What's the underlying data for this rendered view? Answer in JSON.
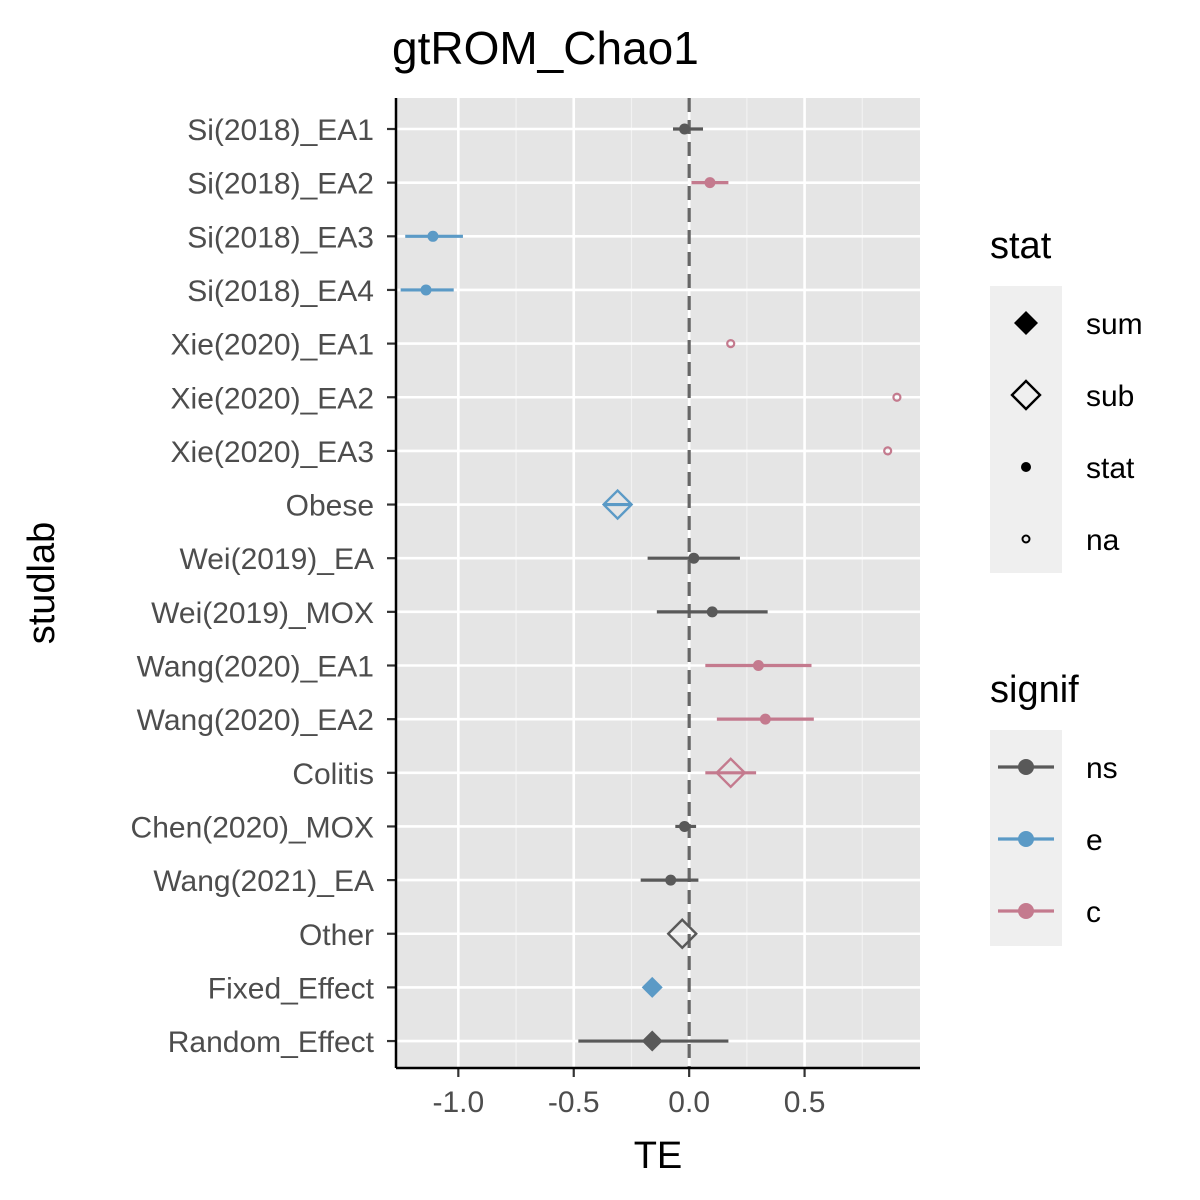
{
  "chart_data": {
    "type": "forest",
    "title": "gtROM_Chao1",
    "xlabel": "TE",
    "ylabel": "studlab",
    "xlim": [
      -1.27,
      1.0
    ],
    "x_ticks": [
      -1.0,
      -0.5,
      0.0,
      0.5
    ],
    "x_tick_labels": [
      "-1.0",
      "-0.5",
      "0.0",
      "0.5"
    ],
    "reference_line": 0.0,
    "grid": true,
    "rows": [
      {
        "label": "Si(2018)_EA1",
        "te": -0.02,
        "lower": -0.07,
        "upper": 0.06,
        "stat": "stat",
        "signif": "ns"
      },
      {
        "label": "Si(2018)_EA2",
        "te": 0.09,
        "lower": 0.01,
        "upper": 0.17,
        "stat": "stat",
        "signif": "c"
      },
      {
        "label": "Si(2018)_EA3",
        "te": -1.11,
        "lower": -1.23,
        "upper": -0.98,
        "stat": "stat",
        "signif": "e"
      },
      {
        "label": "Si(2018)_EA4",
        "te": -1.14,
        "lower": -1.25,
        "upper": -1.02,
        "stat": "stat",
        "signif": "e"
      },
      {
        "label": "Xie(2020)_EA1",
        "te": 0.18,
        "lower": null,
        "upper": null,
        "stat": "na",
        "signif": "c"
      },
      {
        "label": "Xie(2020)_EA2",
        "te": 0.9,
        "lower": null,
        "upper": null,
        "stat": "na",
        "signif": "c"
      },
      {
        "label": "Xie(2020)_EA3",
        "te": 0.86,
        "lower": null,
        "upper": null,
        "stat": "na",
        "signif": "c"
      },
      {
        "label": "Obese",
        "te": -0.31,
        "lower": -0.37,
        "upper": -0.25,
        "stat": "sub",
        "signif": "e"
      },
      {
        "label": "Wei(2019)_EA",
        "te": 0.02,
        "lower": -0.18,
        "upper": 0.22,
        "stat": "stat",
        "signif": "ns"
      },
      {
        "label": "Wei(2019)_MOX",
        "te": 0.1,
        "lower": -0.14,
        "upper": 0.34,
        "stat": "stat",
        "signif": "ns"
      },
      {
        "label": "Wang(2020)_EA1",
        "te": 0.3,
        "lower": 0.07,
        "upper": 0.53,
        "stat": "stat",
        "signif": "c"
      },
      {
        "label": "Wang(2020)_EA2",
        "te": 0.33,
        "lower": 0.12,
        "upper": 0.54,
        "stat": "stat",
        "signif": "c"
      },
      {
        "label": "Colitis",
        "te": 0.18,
        "lower": 0.07,
        "upper": 0.29,
        "stat": "sub",
        "signif": "c"
      },
      {
        "label": "Chen(2020)_MOX",
        "te": -0.02,
        "lower": -0.06,
        "upper": 0.03,
        "stat": "stat",
        "signif": "ns"
      },
      {
        "label": "Wang(2021)_EA",
        "te": -0.08,
        "lower": -0.21,
        "upper": 0.04,
        "stat": "stat",
        "signif": "ns"
      },
      {
        "label": "Other",
        "te": -0.03,
        "lower": null,
        "upper": null,
        "stat": "sub",
        "signif": "ns"
      },
      {
        "label": "Fixed_Effect",
        "te": -0.16,
        "lower": null,
        "upper": null,
        "stat": "sum",
        "signif": "e"
      },
      {
        "label": "Random_Effect",
        "te": -0.16,
        "lower": -0.48,
        "upper": 0.17,
        "stat": "sum",
        "signif": "ns"
      }
    ],
    "colors": {
      "ns": "#595959",
      "e": "#5b9ac6",
      "c": "#c47a8e"
    },
    "legend_stat": {
      "title": "stat",
      "items": [
        {
          "key": "sum",
          "label": "sum"
        },
        {
          "key": "sub",
          "label": "sub"
        },
        {
          "key": "stat",
          "label": "stat"
        },
        {
          "key": "na",
          "label": "na"
        }
      ]
    },
    "legend_signif": {
      "title": "signif",
      "items": [
        {
          "key": "ns",
          "label": "ns"
        },
        {
          "key": "e",
          "label": "e"
        },
        {
          "key": "c",
          "label": "c"
        }
      ]
    }
  }
}
